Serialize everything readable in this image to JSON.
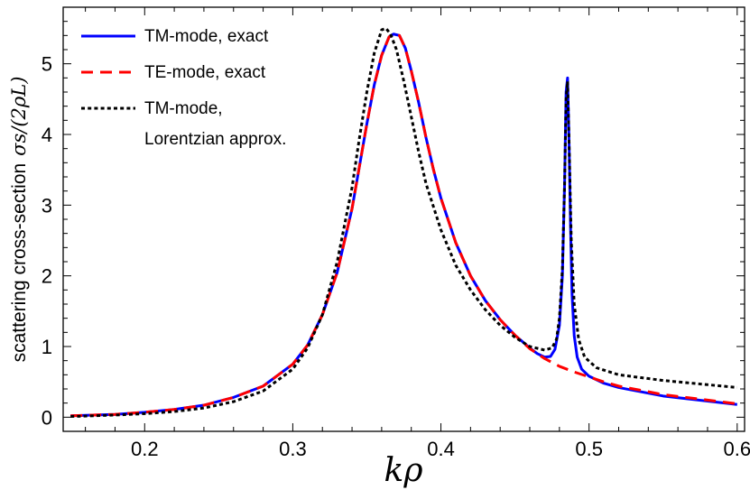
{
  "chart_data": {
    "type": "line",
    "xlabel": "kρ",
    "ylabel": {
      "text": "scattering cross-section",
      "math": "σ_s/(2ρL)",
      "math_display": "σs/(2ρL)"
    },
    "xlim": [
      0.145,
      0.605
    ],
    "ylim": [
      -0.2,
      5.8
    ],
    "xticks": [
      0.2,
      0.3,
      0.4,
      0.5,
      0.6
    ],
    "xtick_labels": [
      "0.2",
      "0.3",
      "0.4",
      "0.5",
      "0.6"
    ],
    "yticks": [
      0,
      1,
      2,
      3,
      4,
      5
    ],
    "ytick_labels": [
      "0",
      "1",
      "2",
      "3",
      "4",
      "5"
    ],
    "grid": false,
    "legend_position": "top-left",
    "series": [
      {
        "name": "TM-mode, exact",
        "color": "#0000ff",
        "dash": "solid",
        "x": [
          0.15,
          0.18,
          0.2,
          0.22,
          0.24,
          0.26,
          0.28,
          0.3,
          0.31,
          0.32,
          0.33,
          0.34,
          0.345,
          0.35,
          0.355,
          0.36,
          0.365,
          0.368,
          0.372,
          0.376,
          0.38,
          0.385,
          0.39,
          0.395,
          0.4,
          0.41,
          0.42,
          0.43,
          0.44,
          0.45,
          0.46,
          0.465,
          0.47,
          0.474,
          0.477,
          0.48,
          0.482,
          0.4835,
          0.4845,
          0.4855,
          0.4865,
          0.4875,
          0.4885,
          0.49,
          0.492,
          0.495,
          0.5,
          0.51,
          0.52,
          0.55,
          0.6
        ],
        "y": [
          0.02,
          0.04,
          0.07,
          0.11,
          0.17,
          0.28,
          0.44,
          0.75,
          1.02,
          1.45,
          2.05,
          2.95,
          3.55,
          4.15,
          4.7,
          5.12,
          5.38,
          5.42,
          5.4,
          5.22,
          4.9,
          4.45,
          3.95,
          3.5,
          3.1,
          2.47,
          2.0,
          1.65,
          1.38,
          1.16,
          0.98,
          0.9,
          0.85,
          0.86,
          0.96,
          1.3,
          2.0,
          3.3,
          4.6,
          4.8,
          3.9,
          2.7,
          1.75,
          1.15,
          0.85,
          0.68,
          0.58,
          0.48,
          0.42,
          0.3,
          0.18
        ]
      },
      {
        "name": "TE-mode, exact",
        "color": "#ff0000",
        "dash": "dashed",
        "x": [
          0.15,
          0.18,
          0.2,
          0.22,
          0.24,
          0.26,
          0.28,
          0.3,
          0.31,
          0.32,
          0.33,
          0.34,
          0.345,
          0.35,
          0.355,
          0.36,
          0.365,
          0.368,
          0.372,
          0.376,
          0.38,
          0.385,
          0.39,
          0.395,
          0.4,
          0.41,
          0.42,
          0.43,
          0.44,
          0.45,
          0.46,
          0.47,
          0.48,
          0.49,
          0.5,
          0.51,
          0.52,
          0.55,
          0.6
        ],
        "y": [
          0.02,
          0.04,
          0.07,
          0.11,
          0.17,
          0.28,
          0.44,
          0.75,
          1.02,
          1.45,
          2.05,
          2.95,
          3.55,
          4.15,
          4.7,
          5.12,
          5.38,
          5.42,
          5.4,
          5.22,
          4.9,
          4.45,
          3.95,
          3.5,
          3.1,
          2.47,
          2.0,
          1.65,
          1.38,
          1.16,
          0.97,
          0.83,
          0.72,
          0.64,
          0.57,
          0.5,
          0.44,
          0.32,
          0.19
        ]
      },
      {
        "name": "TM-mode,\nLorentzian approx.",
        "name_lines": [
          "TM-mode,",
          "Lorentzian approx."
        ],
        "color": "#000000",
        "dash": "dotted",
        "x": [
          0.15,
          0.18,
          0.2,
          0.22,
          0.24,
          0.26,
          0.28,
          0.3,
          0.31,
          0.32,
          0.33,
          0.34,
          0.345,
          0.35,
          0.355,
          0.36,
          0.363,
          0.366,
          0.37,
          0.375,
          0.38,
          0.385,
          0.39,
          0.4,
          0.41,
          0.42,
          0.43,
          0.44,
          0.45,
          0.46,
          0.47,
          0.475,
          0.478,
          0.48,
          0.482,
          0.4835,
          0.4845,
          0.4855,
          0.4865,
          0.488,
          0.49,
          0.493,
          0.497,
          0.505,
          0.52,
          0.55,
          0.6
        ],
        "y": [
          0.01,
          0.03,
          0.05,
          0.08,
          0.13,
          0.22,
          0.37,
          0.68,
          0.98,
          1.45,
          2.2,
          3.25,
          3.95,
          4.6,
          5.15,
          5.48,
          5.5,
          5.42,
          5.2,
          4.75,
          4.25,
          3.75,
          3.3,
          2.65,
          2.15,
          1.8,
          1.52,
          1.3,
          1.13,
          1.0,
          0.95,
          0.98,
          1.1,
          1.4,
          2.1,
          3.3,
          4.5,
          4.75,
          3.9,
          2.5,
          1.6,
          1.1,
          0.85,
          0.7,
          0.6,
          0.52,
          0.42
        ]
      }
    ]
  }
}
